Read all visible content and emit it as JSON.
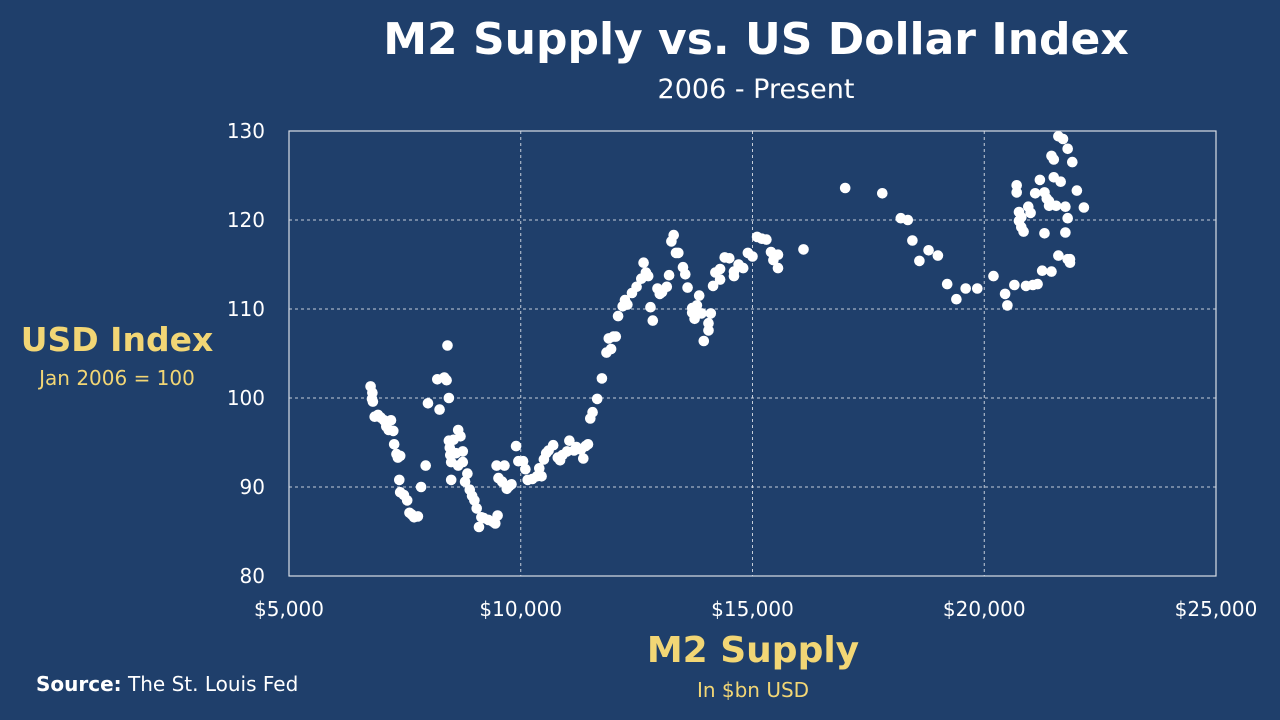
{
  "chart_data": {
    "type": "scatter",
    "title": "M2 Supply vs. US Dollar Index",
    "subtitle": "2006 - Present",
    "xlabel": "M2 Supply",
    "xlabel_sub": "In $bn USD",
    "ylabel": "USD Index",
    "ylabel_sub": "Jan 2006 = 100",
    "xlim": [
      5000,
      25000
    ],
    "ylim": [
      80,
      130
    ],
    "x_ticks": [
      5000,
      10000,
      15000,
      20000,
      25000
    ],
    "x_tick_labels": [
      "$5,000",
      "$10,000",
      "$15,000",
      "$20,000",
      "$25,000"
    ],
    "y_ticks": [
      80,
      90,
      100,
      110,
      120,
      130
    ],
    "y_tick_labels": [
      "80",
      "90",
      "100",
      "110",
      "120",
      "130"
    ],
    "grid": true,
    "point_color": "#ffffff",
    "points": [
      [
        6760,
        101.3
      ],
      [
        6800,
        100.6
      ],
      [
        6790,
        99.9
      ],
      [
        6810,
        99.6
      ],
      [
        6850,
        97.9
      ],
      [
        6920,
        98.1
      ],
      [
        6980,
        97.8
      ],
      [
        7050,
        97.5
      ],
      [
        7100,
        96.8
      ],
      [
        7150,
        96.4
      ],
      [
        7200,
        97.5
      ],
      [
        7250,
        96.3
      ],
      [
        7270,
        94.8
      ],
      [
        7320,
        93.7
      ],
      [
        7350,
        93.3
      ],
      [
        7400,
        93.5
      ],
      [
        7380,
        90.8
      ],
      [
        7400,
        89.4
      ],
      [
        7480,
        89.1
      ],
      [
        7550,
        88.5
      ],
      [
        7600,
        87.1
      ],
      [
        7650,
        86.9
      ],
      [
        7700,
        86.6
      ],
      [
        7780,
        86.7
      ],
      [
        7850,
        90.0
      ],
      [
        7950,
        92.4
      ],
      [
        8000,
        99.4
      ],
      [
        8200,
        102.1
      ],
      [
        8250,
        98.7
      ],
      [
        8350,
        102.3
      ],
      [
        8400,
        102.0
      ],
      [
        8420,
        105.9
      ],
      [
        8450,
        100.0
      ],
      [
        8450,
        95.2
      ],
      [
        8470,
        94.4
      ],
      [
        8480,
        93.6
      ],
      [
        8500,
        92.8
      ],
      [
        8500,
        90.8
      ],
      [
        8550,
        95.3
      ],
      [
        8600,
        93.8
      ],
      [
        8650,
        92.4
      ],
      [
        8650,
        96.4
      ],
      [
        8700,
        95.7
      ],
      [
        8750,
        94.0
      ],
      [
        8750,
        92.8
      ],
      [
        8800,
        90.6
      ],
      [
        8850,
        91.5
      ],
      [
        8900,
        89.7
      ],
      [
        8950,
        89.0
      ],
      [
        9000,
        88.5
      ],
      [
        9050,
        87.6
      ],
      [
        9100,
        85.5
      ],
      [
        9150,
        86.6
      ],
      [
        9200,
        86.5
      ],
      [
        9300,
        86.3
      ],
      [
        9400,
        86.1
      ],
      [
        9450,
        85.9
      ],
      [
        9500,
        86.8
      ],
      [
        9480,
        92.4
      ],
      [
        9520,
        91.0
      ],
      [
        9600,
        90.6
      ],
      [
        9650,
        92.4
      ],
      [
        9700,
        89.8
      ],
      [
        9750,
        90.1
      ],
      [
        9800,
        90.3
      ],
      [
        9900,
        94.6
      ],
      [
        9950,
        92.9
      ],
      [
        10050,
        92.9
      ],
      [
        10100,
        92.0
      ],
      [
        10150,
        90.8
      ],
      [
        10250,
        90.9
      ],
      [
        10350,
        91.2
      ],
      [
        10400,
        92.1
      ],
      [
        10450,
        91.2
      ],
      [
        10500,
        93.1
      ],
      [
        10550,
        93.8
      ],
      [
        10600,
        94.1
      ],
      [
        10700,
        94.7
      ],
      [
        10800,
        93.3
      ],
      [
        10850,
        93.0
      ],
      [
        10900,
        93.6
      ],
      [
        11000,
        94.0
      ],
      [
        11050,
        95.2
      ],
      [
        11150,
        94.1
      ],
      [
        11200,
        94.5
      ],
      [
        11300,
        94.2
      ],
      [
        11350,
        93.2
      ],
      [
        11400,
        94.6
      ],
      [
        11450,
        94.8
      ],
      [
        11500,
        97.7
      ],
      [
        11550,
        98.4
      ],
      [
        11650,
        99.9
      ],
      [
        11750,
        102.2
      ],
      [
        11850,
        105.1
      ],
      [
        11900,
        106.7
      ],
      [
        11950,
        105.5
      ],
      [
        12000,
        106.9
      ],
      [
        12050,
        106.9
      ],
      [
        12100,
        109.2
      ],
      [
        12200,
        110.3
      ],
      [
        12250,
        111.0
      ],
      [
        12300,
        110.5
      ],
      [
        12400,
        111.8
      ],
      [
        12500,
        112.5
      ],
      [
        12600,
        113.4
      ],
      [
        12650,
        115.2
      ],
      [
        12700,
        114.1
      ],
      [
        12750,
        113.7
      ],
      [
        12800,
        110.2
      ],
      [
        12850,
        108.7
      ],
      [
        12950,
        112.3
      ],
      [
        13000,
        111.7
      ],
      [
        13050,
        111.9
      ],
      [
        13150,
        112.5
      ],
      [
        13200,
        113.8
      ],
      [
        13250,
        117.6
      ],
      [
        13300,
        118.3
      ],
      [
        13350,
        116.3
      ],
      [
        13400,
        116.3
      ],
      [
        13500,
        114.7
      ],
      [
        13550,
        113.9
      ],
      [
        13600,
        112.4
      ],
      [
        13700,
        109.6
      ],
      [
        13700,
        110.1
      ],
      [
        13750,
        108.9
      ],
      [
        13800,
        110.4
      ],
      [
        13850,
        111.5
      ],
      [
        13900,
        109.5
      ],
      [
        13950,
        106.4
      ],
      [
        14050,
        107.6
      ],
      [
        14050,
        108.4
      ],
      [
        14100,
        109.5
      ],
      [
        14150,
        112.6
      ],
      [
        14200,
        114.1
      ],
      [
        14300,
        114.5
      ],
      [
        14300,
        113.3
      ],
      [
        14400,
        115.8
      ],
      [
        14500,
        115.7
      ],
      [
        14600,
        114.2
      ],
      [
        14600,
        113.7
      ],
      [
        14700,
        115.0
      ],
      [
        14800,
        114.6
      ],
      [
        14900,
        116.3
      ],
      [
        15000,
        115.9
      ],
      [
        15100,
        118.1
      ],
      [
        15200,
        117.9
      ],
      [
        15300,
        117.8
      ],
      [
        15400,
        116.4
      ],
      [
        15450,
        115.5
      ],
      [
        15550,
        116.1
      ],
      [
        15550,
        114.6
      ],
      [
        16100,
        116.7
      ],
      [
        17000,
        123.6
      ],
      [
        17800,
        123.0
      ],
      [
        18200,
        120.2
      ],
      [
        18350,
        120.0
      ],
      [
        18450,
        117.7
      ],
      [
        18600,
        115.4
      ],
      [
        18800,
        116.6
      ],
      [
        19000,
        116.0
      ],
      [
        19200,
        112.8
      ],
      [
        19400,
        111.1
      ],
      [
        19600,
        112.3
      ],
      [
        19850,
        112.3
      ],
      [
        20200,
        113.7
      ],
      [
        20450,
        111.7
      ],
      [
        20500,
        110.4
      ],
      [
        20650,
        112.7
      ],
      [
        20700,
        123.9
      ],
      [
        20700,
        123.1
      ],
      [
        20750,
        120.9
      ],
      [
        20750,
        119.9
      ],
      [
        20800,
        120.3
      ],
      [
        20800,
        119.2
      ],
      [
        20850,
        118.7
      ],
      [
        20900,
        112.6
      ],
      [
        20950,
        121.5
      ],
      [
        21000,
        120.8
      ],
      [
        21050,
        112.7
      ],
      [
        21100,
        123.0
      ],
      [
        21150,
        112.8
      ],
      [
        21200,
        124.5
      ],
      [
        21250,
        114.3
      ],
      [
        21300,
        118.5
      ],
      [
        21300,
        123.1
      ],
      [
        21350,
        122.4
      ],
      [
        21400,
        121.6
      ],
      [
        21400,
        122.1
      ],
      [
        21450,
        114.2
      ],
      [
        21450,
        127.2
      ],
      [
        21500,
        126.8
      ],
      [
        21500,
        124.8
      ],
      [
        21550,
        121.6
      ],
      [
        21600,
        116.0
      ],
      [
        21600,
        129.4
      ],
      [
        21650,
        124.3
      ],
      [
        21700,
        129.1
      ],
      [
        21750,
        121.5
      ],
      [
        21750,
        118.6
      ],
      [
        21800,
        128.0
      ],
      [
        21800,
        120.2
      ],
      [
        21800,
        115.6
      ],
      [
        21850,
        115.2
      ],
      [
        21850,
        115.6
      ],
      [
        21900,
        126.5
      ],
      [
        22000,
        123.3
      ],
      [
        22150,
        121.4
      ]
    ]
  },
  "source": {
    "label": "Source:",
    "text": "The St. Louis Fed"
  }
}
